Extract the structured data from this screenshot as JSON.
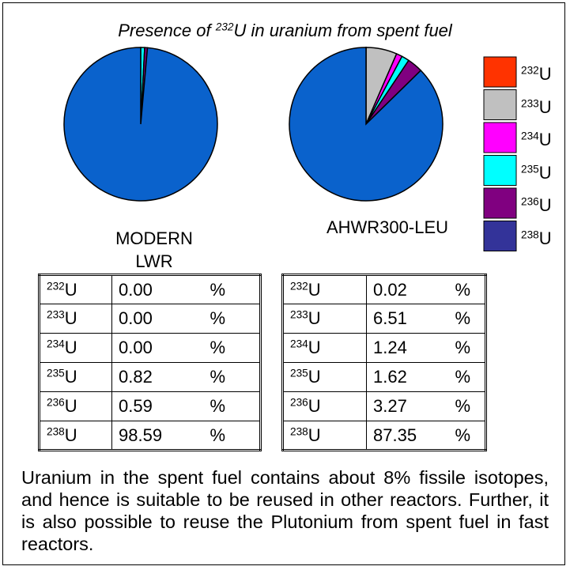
{
  "title": {
    "pre": "Presence of ",
    "sup": "232",
    "post": "U in uranium from spent fuel"
  },
  "isotopes": [
    {
      "mass": "232",
      "symbol": "U"
    },
    {
      "mass": "233",
      "symbol": "U"
    },
    {
      "mass": "234",
      "symbol": "U"
    },
    {
      "mass": "235",
      "symbol": "U"
    },
    {
      "mass": "236",
      "symbol": "U"
    },
    {
      "mass": "238",
      "symbol": "U"
    }
  ],
  "legend_colors": [
    "#ff3300",
    "#c0c0c0",
    "#ff00ff",
    "#00ffff",
    "#800080",
    "#333399"
  ],
  "unit": "%",
  "chart_data": [
    {
      "type": "pie",
      "name": "MODERN LWR",
      "values": [
        0,
        0,
        0,
        0.82,
        0.59,
        98.59
      ],
      "value_labels": [
        "0.00",
        "0.00",
        "0.00",
        "0.82",
        "0.59",
        "98.59"
      ],
      "colors": [
        "#ff3300",
        "#c0c0c0",
        "#ff00ff",
        "#00ffff",
        "#800080",
        "#0a62cc"
      ]
    },
    {
      "type": "pie",
      "name": "AHWR300-LEU",
      "values": [
        0.02,
        6.51,
        1.24,
        1.62,
        3.27,
        87.35
      ],
      "value_labels": [
        "0.02",
        "6.51",
        "1.24",
        "1.62",
        "3.27",
        "87.35"
      ],
      "colors": [
        "#ff3300",
        "#c0c0c0",
        "#ff00ff",
        "#00ffff",
        "#800080",
        "#0a62cc"
      ]
    }
  ],
  "paragraph": "Uranium in the spent fuel contains about 8% fissile isotopes, and hence is suitable to be reused in other reactors. Further, it is also possible to reuse the Plutonium from spent fuel in fast reactors."
}
